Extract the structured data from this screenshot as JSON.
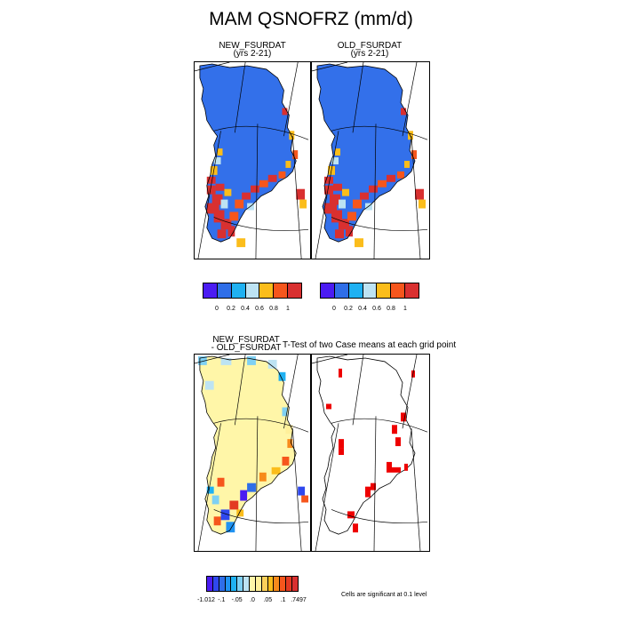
{
  "figure": {
    "title": "MAM QSNOFRZ (mm/d)"
  },
  "panels": {
    "new": {
      "title": "NEW_FSURDAT",
      "subtitle": "(yrs 2-21)"
    },
    "old": {
      "title": "OLD_FSURDAT",
      "subtitle": "(yrs 2-21)"
    },
    "diff": {
      "title_line1": "NEW_FSURDAT",
      "title_line2": "- OLD_FSURDAT"
    },
    "ttest": {
      "title": "T-Test of two Case means at each grid point"
    }
  },
  "colorbar_main": {
    "colors": [
      "#4b1cf2",
      "#2f6ee8",
      "#1fb1f2",
      "#bde3f3",
      "#fbbd1b",
      "#f6561c",
      "#d93030"
    ],
    "labels": [
      "0",
      "0.2",
      "0.4",
      "0.6",
      "0.8",
      "1"
    ]
  },
  "colorbar_diff": {
    "colors": [
      "#4b1cf2",
      "#2f48ee",
      "#2f6ee8",
      "#1f92f2",
      "#1fb1f2",
      "#7fd0f3",
      "#bde3f3",
      "#fff6a8",
      "#fff09a",
      "#fbd05a",
      "#fbbd1b",
      "#f78a1b",
      "#f6561c",
      "#e33a22",
      "#d93030"
    ],
    "labels": [
      "-1.012",
      "-.1",
      "-.05",
      ".0",
      ".05",
      ".1",
      ".7497"
    ]
  },
  "significance_note": "Cells are significant at 0.1 level",
  "legend_colors": {
    "ice_blue": "#3370ea",
    "diff_yellow": "#fff6a8",
    "significant_red": "#ee0000"
  }
}
